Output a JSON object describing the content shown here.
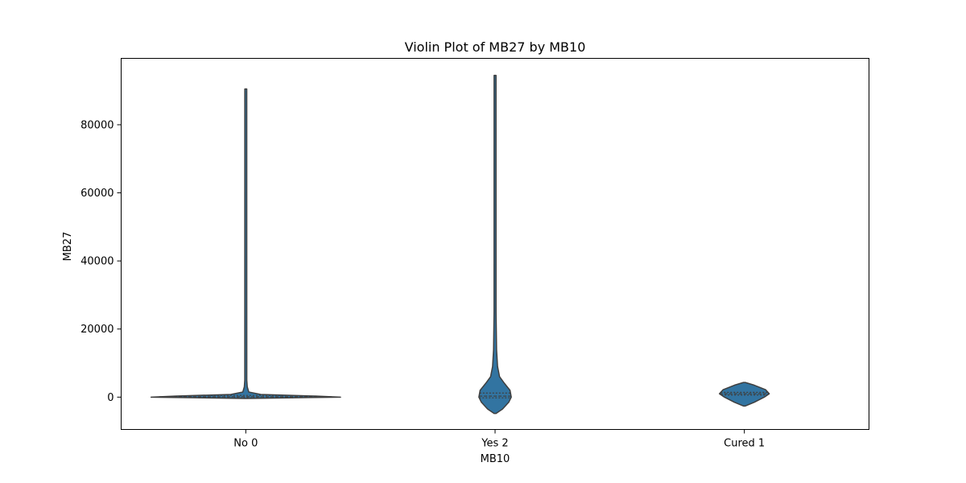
{
  "chart_data": {
    "type": "violin",
    "title": "Violin Plot of MB27 by MB10",
    "xlabel": "MB10",
    "ylabel": "MB27",
    "categories": [
      "No 0",
      "Yes 2",
      "Cured 1"
    ],
    "yticks": [
      0,
      20000,
      40000,
      60000,
      80000
    ],
    "ytick_labels": [
      "0",
      "20000",
      "40000",
      "60000",
      "80000"
    ],
    "ylim": [
      -9500,
      99500
    ],
    "grid": false,
    "fill_color": "#3274a1",
    "edge_color": "#3f3f3f",
    "violins": [
      {
        "category": "No 0",
        "profile": [
          {
            "y": -400,
            "half_width": 0
          },
          {
            "y": 0,
            "half_width": 0.38
          },
          {
            "y": 300,
            "half_width": 0.28
          },
          {
            "y": 800,
            "half_width": 0.06
          },
          {
            "y": 1500,
            "half_width": 0.012
          },
          {
            "y": 3000,
            "half_width": 0.006
          },
          {
            "y": 5000,
            "half_width": 0.004
          },
          {
            "y": 90500,
            "half_width": 0.003
          }
        ],
        "quartiles": [
          -200,
          100,
          500
        ]
      },
      {
        "category": "Yes 2",
        "profile": [
          {
            "y": -4800,
            "half_width": 0
          },
          {
            "y": -3500,
            "half_width": 0.03
          },
          {
            "y": -1500,
            "half_width": 0.055
          },
          {
            "y": 0,
            "half_width": 0.065
          },
          {
            "y": 2000,
            "half_width": 0.06
          },
          {
            "y": 4000,
            "half_width": 0.038
          },
          {
            "y": 6000,
            "half_width": 0.018
          },
          {
            "y": 9000,
            "half_width": 0.01
          },
          {
            "y": 14000,
            "half_width": 0.006
          },
          {
            "y": 25000,
            "half_width": 0.004
          },
          {
            "y": 94500,
            "half_width": 0.003
          }
        ],
        "quartiles": [
          -200,
          300,
          1200
        ]
      },
      {
        "category": "Cured 1",
        "profile": [
          {
            "y": -2600,
            "half_width": 0
          },
          {
            "y": -1500,
            "half_width": 0.04
          },
          {
            "y": 0,
            "half_width": 0.08
          },
          {
            "y": 1000,
            "half_width": 0.1
          },
          {
            "y": 2200,
            "half_width": 0.085
          },
          {
            "y": 3500,
            "half_width": 0.04
          },
          {
            "y": 4300,
            "half_width": 0
          }
        ],
        "quartiles": [
          600,
          1000,
          1400
        ]
      }
    ]
  }
}
